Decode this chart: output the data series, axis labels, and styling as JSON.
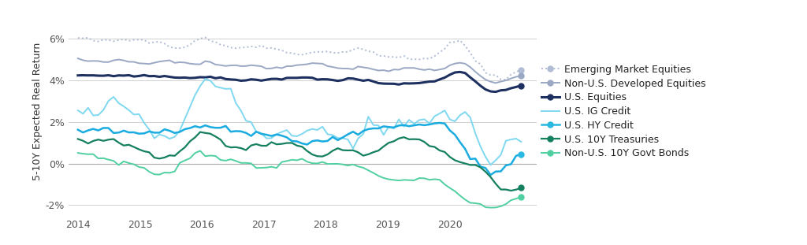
{
  "ylabel": "5-10Y Expected Real Return",
  "xlim": [
    2013.85,
    2021.4
  ],
  "ylim": [
    -0.025,
    0.075
  ],
  "yticks": [
    -0.02,
    0.0,
    0.02,
    0.04,
    0.06
  ],
  "ytick_labels": [
    "-2%",
    "0%",
    "2%",
    "4%",
    "6%"
  ],
  "xticks": [
    2014,
    2015,
    2016,
    2017,
    2018,
    2019,
    2020
  ],
  "background_color": "#ffffff",
  "grid_color": "#d0d0d0",
  "series": [
    {
      "name": "Emerging Market Equities",
      "color": "#b0bcd4",
      "linestyle": "dotted",
      "linewidth": 1.4,
      "ep_marker": true,
      "ep_color": "#b0bcd4"
    },
    {
      "name": "Non-U.S. Developed Equities",
      "color": "#9aa8c4",
      "linestyle": "solid",
      "linewidth": 1.4,
      "ep_marker": true,
      "ep_color": "#9aa8c4"
    },
    {
      "name": "U.S. Equities",
      "color": "#1e3060",
      "linestyle": "solid",
      "linewidth": 2.2,
      "ep_marker": true,
      "ep_color": "#1e3060"
    },
    {
      "name": "U.S. IG Credit",
      "color": "#7fd8f0",
      "linestyle": "solid",
      "linewidth": 1.4,
      "ep_marker": false,
      "ep_color": "#7fd8f0"
    },
    {
      "name": "U.S. HY Credit",
      "color": "#1aace0",
      "linestyle": "solid",
      "linewidth": 1.8,
      "ep_marker": true,
      "ep_color": "#28b8e0"
    },
    {
      "name": "U.S. 10Y Treasuries",
      "color": "#148060",
      "linestyle": "solid",
      "linewidth": 1.6,
      "ep_marker": true,
      "ep_color": "#148060"
    },
    {
      "name": "Non-U.S. 10Y Govt Bonds",
      "color": "#50d0a0",
      "linestyle": "solid",
      "linewidth": 1.4,
      "ep_marker": true,
      "ep_color": "#50d0a0"
    }
  ],
  "legend_entries": [
    {
      "name": "Emerging Market Equities",
      "color": "#b0bcd4",
      "linestyle": "dotted",
      "lw": 1.4,
      "mk": true,
      "mkc": "#b0bcd4"
    },
    {
      "name": "Non-U.S. Developed Equities",
      "color": "#9aa8c4",
      "linestyle": "solid",
      "lw": 1.4,
      "mk": true,
      "mkc": "#9aa8c4"
    },
    {
      "name": "U.S. Equities",
      "color": "#1e3060",
      "linestyle": "solid",
      "lw": 2.2,
      "mk": true,
      "mkc": "#1e3060"
    },
    {
      "name": "U.S. IG Credit",
      "color": "#7fd8f0",
      "linestyle": "solid",
      "lw": 1.4,
      "mk": false,
      "mkc": "#7fd8f0"
    },
    {
      "name": "U.S. HY Credit",
      "color": "#28b8e0",
      "linestyle": "solid",
      "lw": 1.8,
      "mk": true,
      "mkc": "#28b8e0"
    },
    {
      "name": "U.S. 10Y Treasuries",
      "color": "#148060",
      "linestyle": "solid",
      "lw": 1.6,
      "mk": true,
      "mkc": "#148060"
    },
    {
      "name": "Non-U.S. 10Y Govt Bonds",
      "color": "#50d0a0",
      "linestyle": "solid",
      "lw": 1.4,
      "mk": true,
      "mkc": "#50d0a0"
    }
  ]
}
